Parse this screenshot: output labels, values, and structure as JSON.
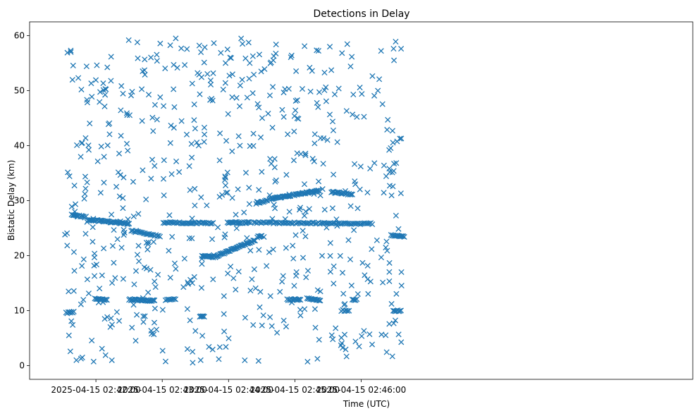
{
  "chart_data": {
    "type": "scatter",
    "title": "Detections in Delay",
    "xlabel": "Time (UTC)",
    "ylabel": "Bistatic Delay (km)",
    "marker": "x",
    "color": "#1f77b4",
    "xlim_seconds": [
      -60,
      540
    ],
    "ylim": [
      -2.5,
      62.5
    ],
    "x_ticks": [
      {
        "t": 0,
        "label": "2025-04-15 02:42:00"
      },
      {
        "t": 60,
        "label": "2025-04-15 02:43:00"
      },
      {
        "t": 120,
        "label": "2025-04-15 02:44:00"
      },
      {
        "t": 180,
        "label": "2025-04-15 02:45:00"
      },
      {
        "t": 240,
        "label": "2025-04-15 02:46:00"
      }
    ],
    "y_ticks": [
      0,
      10,
      20,
      30,
      40,
      50,
      60
    ],
    "x_unit": "seconds after 2025-04-15 02:42:00",
    "tracks": [
      {
        "t_start": -22,
        "t_end": -9,
        "y_start": 27.5,
        "y_end": 27.0,
        "count": 14
      },
      {
        "t_start": -7,
        "t_end": 30,
        "y_start": 26.5,
        "y_end": 25.8,
        "count": 40
      },
      {
        "t_start": 32,
        "t_end": 58,
        "y_start": 24.5,
        "y_end": 23.5,
        "count": 22
      },
      {
        "t_start": 61,
        "t_end": 106,
        "y_start": 26.0,
        "y_end": 25.9,
        "count": 38
      },
      {
        "t_start": 119,
        "t_end": 140,
        "y_start": 26.0,
        "y_end": 26.0,
        "count": 22
      },
      {
        "t_start": 143,
        "t_end": 250,
        "y_start": 26.0,
        "y_end": 25.8,
        "count": 80
      },
      {
        "t_start": 267,
        "t_end": 279,
        "y_start": 23.7,
        "y_end": 23.5,
        "count": 14
      },
      {
        "t_start": 96,
        "t_end": 106,
        "y_start": 20.0,
        "y_end": 19.7,
        "count": 12
      },
      {
        "t_start": 108,
        "t_end": 144,
        "y_start": 19.8,
        "y_end": 22.8,
        "count": 42
      },
      {
        "t_start": 146,
        "t_end": 150,
        "y_start": 23.4,
        "y_end": 23.6,
        "count": 6
      },
      {
        "t_start": 145,
        "t_end": 155,
        "y_start": 29.5,
        "y_end": 30.0,
        "count": 10
      },
      {
        "t_start": 157,
        "t_end": 176,
        "y_start": 30.3,
        "y_end": 30.9,
        "count": 22
      },
      {
        "t_start": 178,
        "t_end": 202,
        "y_start": 31.0,
        "y_end": 31.8,
        "count": 30
      },
      {
        "t_start": 213,
        "t_end": 232,
        "y_start": 31.6,
        "y_end": 31.1,
        "count": 20
      },
      {
        "t_start": -27,
        "t_end": -20,
        "y_start": 9.6,
        "y_end": 9.7,
        "count": 8
      },
      {
        "t_start": -1,
        "t_end": 10,
        "y_start": 12.2,
        "y_end": 12.0,
        "count": 12
      },
      {
        "t_start": 30,
        "t_end": 53,
        "y_start": 12.0,
        "y_end": 11.8,
        "count": 28
      },
      {
        "t_start": 63,
        "t_end": 72,
        "y_start": 12.0,
        "y_end": 12.0,
        "count": 8
      },
      {
        "t_start": 94,
        "t_end": 98,
        "y_start": 9.0,
        "y_end": 9.0,
        "count": 6
      },
      {
        "t_start": 173,
        "t_end": 185,
        "y_start": 12.0,
        "y_end": 12.0,
        "count": 14
      },
      {
        "t_start": 191,
        "t_end": 203,
        "y_start": 12.2,
        "y_end": 11.8,
        "count": 14
      },
      {
        "t_start": 222,
        "t_end": 229,
        "y_start": 10.0,
        "y_end": 10.0,
        "count": 6
      },
      {
        "t_start": 232,
        "t_end": 236,
        "y_start": 12.0,
        "y_end": 12.0,
        "count": 5
      },
      {
        "t_start": 269,
        "t_end": 276,
        "y_start": 10.0,
        "y_end": 9.9,
        "count": 8
      }
    ],
    "clutter": {
      "count": 620,
      "seed": 20250415,
      "t_range": [
        -28,
        277
      ],
      "delay_range": [
        0.5,
        60
      ]
    }
  }
}
